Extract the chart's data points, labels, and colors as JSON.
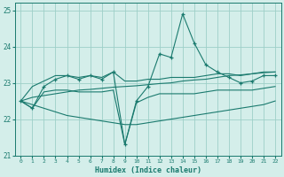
{
  "x": [
    0,
    1,
    2,
    3,
    4,
    5,
    6,
    7,
    8,
    9,
    10,
    11,
    12,
    13,
    14,
    15,
    16,
    17,
    18,
    19,
    20,
    21,
    22
  ],
  "main_line": [
    22.5,
    22.3,
    22.9,
    23.1,
    23.2,
    23.1,
    23.2,
    23.1,
    23.3,
    21.3,
    22.5,
    22.9,
    23.8,
    23.7,
    24.9,
    24.1,
    23.5,
    23.3,
    23.15,
    23.0,
    23.05,
    23.2,
    23.2
  ],
  "upper_env": [
    22.5,
    22.9,
    23.05,
    23.2,
    23.2,
    23.15,
    23.2,
    23.15,
    23.3,
    23.05,
    23.05,
    23.1,
    23.1,
    23.15,
    23.15,
    23.15,
    23.2,
    23.25,
    23.25,
    23.2,
    23.25,
    23.3,
    23.3
  ],
  "lower_env": [
    22.5,
    22.3,
    22.75,
    22.8,
    22.8,
    22.75,
    22.75,
    22.75,
    22.8,
    21.3,
    22.45,
    22.6,
    22.7,
    22.7,
    22.7,
    22.7,
    22.75,
    22.8,
    22.8,
    22.8,
    22.8,
    22.85,
    22.9
  ],
  "trend_upper": [
    22.5,
    22.6,
    22.65,
    22.7,
    22.75,
    22.8,
    22.82,
    22.85,
    22.88,
    22.9,
    22.92,
    22.95,
    22.98,
    23.0,
    23.05,
    23.08,
    23.1,
    23.15,
    23.2,
    23.22,
    23.25,
    23.28,
    23.3
  ],
  "trend_lower": [
    22.5,
    22.4,
    22.3,
    22.2,
    22.1,
    22.05,
    22.0,
    21.95,
    21.9,
    21.85,
    21.85,
    21.9,
    21.95,
    22.0,
    22.05,
    22.1,
    22.15,
    22.2,
    22.25,
    22.3,
    22.35,
    22.4,
    22.5
  ],
  "line_color": "#1a7a6e",
  "bg_color": "#d4eeea",
  "grid_color": "#9ecfc8",
  "xlabel": "Humidex (Indice chaleur)",
  "ylim": [
    21.0,
    25.2
  ],
  "xlim": [
    -0.5,
    22.5
  ],
  "yticks": [
    21,
    22,
    23,
    24,
    25
  ],
  "xticks": [
    0,
    1,
    2,
    3,
    4,
    5,
    6,
    7,
    8,
    9,
    10,
    11,
    12,
    13,
    14,
    15,
    16,
    17,
    18,
    19,
    20,
    21,
    22
  ]
}
